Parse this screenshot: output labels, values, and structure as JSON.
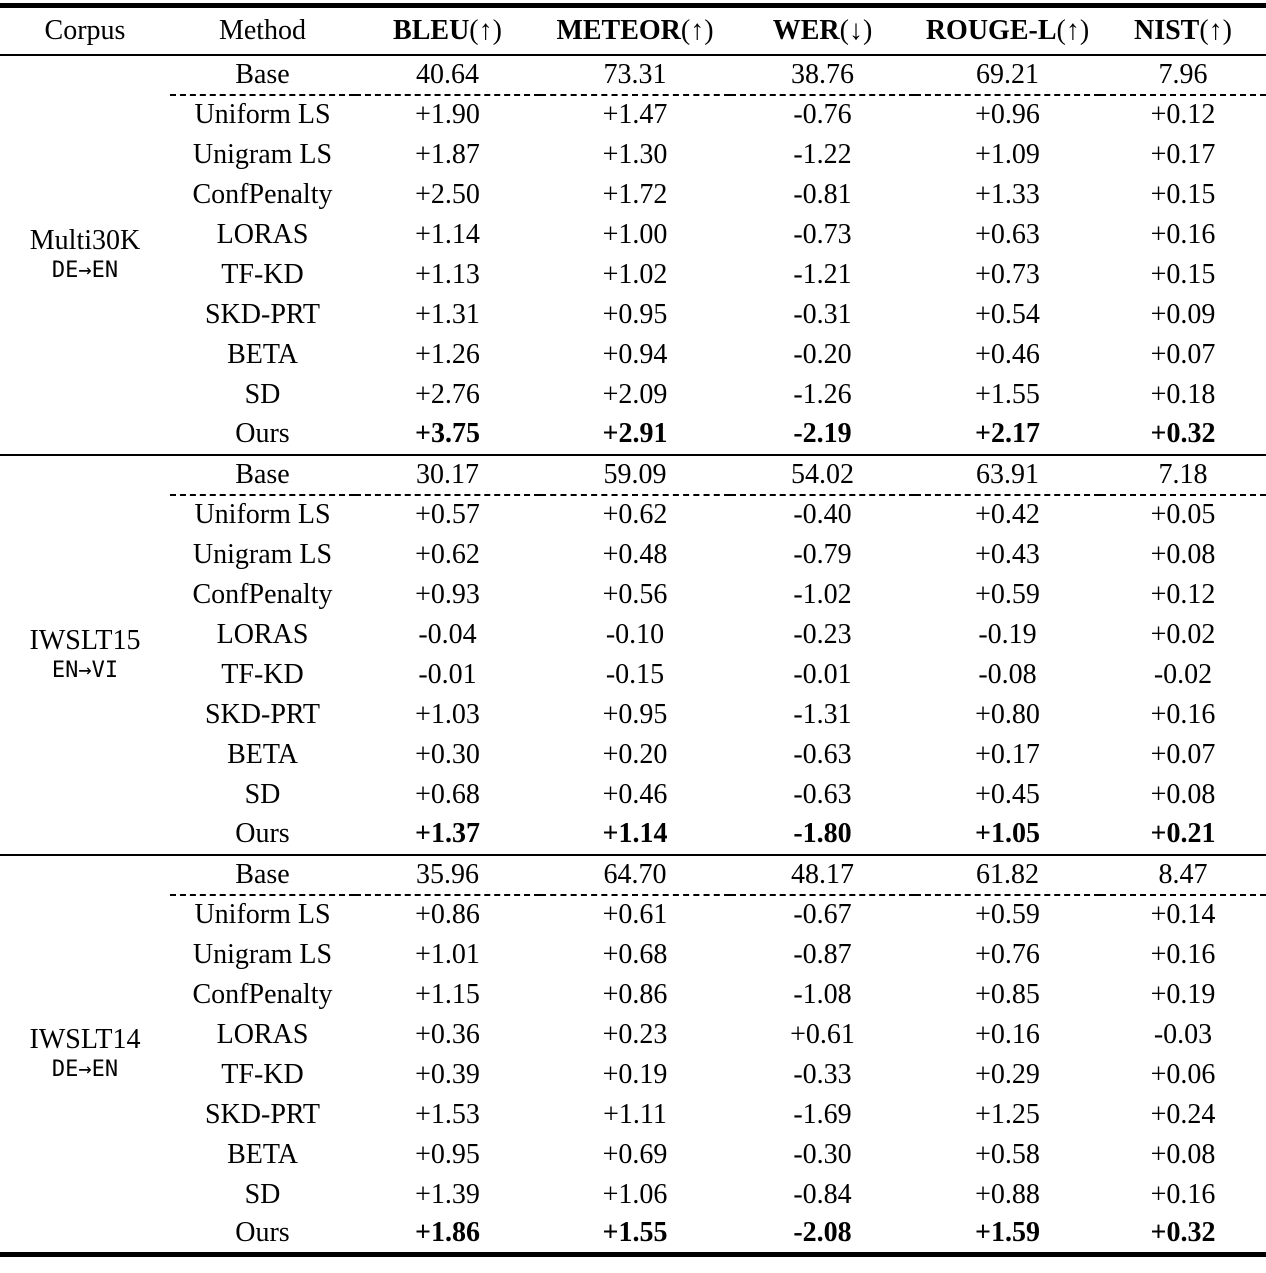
{
  "header": {
    "corpus": "Corpus",
    "method": "Method",
    "metrics": [
      {
        "name": "BLEU",
        "arrow": "(↑)"
      },
      {
        "name": "METEOR",
        "arrow": "(↑)"
      },
      {
        "name": "WER",
        "arrow": "(↓)"
      },
      {
        "name": "ROUGE-L",
        "arrow": "(↑)"
      },
      {
        "name": "NIST",
        "arrow": "(↑)"
      }
    ]
  },
  "sections": [
    {
      "corpus": "Multi30K",
      "direction": "DE→EN",
      "rows": [
        {
          "method": "Base",
          "values": [
            "40.64",
            "73.31",
            "38.76",
            "69.21",
            "7.96"
          ],
          "bold": false,
          "dashed_below": true
        },
        {
          "method": "Uniform LS",
          "values": [
            "+1.90",
            "+1.47",
            "-0.76",
            "+0.96",
            "+0.12"
          ],
          "bold": false,
          "dashed_below": false
        },
        {
          "method": "Unigram LS",
          "values": [
            "+1.87",
            "+1.30",
            "-1.22",
            "+1.09",
            "+0.17"
          ],
          "bold": false,
          "dashed_below": false
        },
        {
          "method": "ConfPenalty",
          "values": [
            "+2.50",
            "+1.72",
            "-0.81",
            "+1.33",
            "+0.15"
          ],
          "bold": false,
          "dashed_below": false
        },
        {
          "method": "LORAS",
          "values": [
            "+1.14",
            "+1.00",
            "-0.73",
            "+0.63",
            "+0.16"
          ],
          "bold": false,
          "dashed_below": false
        },
        {
          "method": "TF-KD",
          "values": [
            "+1.13",
            "+1.02",
            "-1.21",
            "+0.73",
            "+0.15"
          ],
          "bold": false,
          "dashed_below": false
        },
        {
          "method": "SKD-PRT",
          "values": [
            "+1.31",
            "+0.95",
            "-0.31",
            "+0.54",
            "+0.09"
          ],
          "bold": false,
          "dashed_below": false
        },
        {
          "method": "BETA",
          "values": [
            "+1.26",
            "+0.94",
            "-0.20",
            "+0.46",
            "+0.07"
          ],
          "bold": false,
          "dashed_below": false
        },
        {
          "method": "SD",
          "values": [
            "+2.76",
            "+2.09",
            "-1.26",
            "+1.55",
            "+0.18"
          ],
          "bold": false,
          "dashed_below": false
        },
        {
          "method": "Ours",
          "values": [
            "+3.75",
            "+2.91",
            "-2.19",
            "+2.17",
            "+0.32"
          ],
          "bold": true,
          "dashed_below": false
        }
      ]
    },
    {
      "corpus": "IWSLT15",
      "direction": "EN→VI",
      "rows": [
        {
          "method": "Base",
          "values": [
            "30.17",
            "59.09",
            "54.02",
            "63.91",
            "7.18"
          ],
          "bold": false,
          "dashed_below": true
        },
        {
          "method": "Uniform LS",
          "values": [
            "+0.57",
            "+0.62",
            "-0.40",
            "+0.42",
            "+0.05"
          ],
          "bold": false,
          "dashed_below": false
        },
        {
          "method": "Unigram LS",
          "values": [
            "+0.62",
            "+0.48",
            "-0.79",
            "+0.43",
            "+0.08"
          ],
          "bold": false,
          "dashed_below": false
        },
        {
          "method": "ConfPenalty",
          "values": [
            "+0.93",
            "+0.56",
            "-1.02",
            "+0.59",
            "+0.12"
          ],
          "bold": false,
          "dashed_below": false
        },
        {
          "method": "LORAS",
          "values": [
            "-0.04",
            "-0.10",
            "-0.23",
            "-0.19",
            "+0.02"
          ],
          "bold": false,
          "dashed_below": false
        },
        {
          "method": "TF-KD",
          "values": [
            "-0.01",
            "-0.15",
            "-0.01",
            "-0.08",
            "-0.02"
          ],
          "bold": false,
          "dashed_below": false
        },
        {
          "method": "SKD-PRT",
          "values": [
            "+1.03",
            "+0.95",
            "-1.31",
            "+0.80",
            "+0.16"
          ],
          "bold": false,
          "dashed_below": false
        },
        {
          "method": "BETA",
          "values": [
            "+0.30",
            "+0.20",
            "-0.63",
            "+0.17",
            "+0.07"
          ],
          "bold": false,
          "dashed_below": false
        },
        {
          "method": "SD",
          "values": [
            "+0.68",
            "+0.46",
            "-0.63",
            "+0.45",
            "+0.08"
          ],
          "bold": false,
          "dashed_below": false
        },
        {
          "method": "Ours",
          "values": [
            "+1.37",
            "+1.14",
            "-1.80",
            "+1.05",
            "+0.21"
          ],
          "bold": true,
          "dashed_below": false
        }
      ]
    },
    {
      "corpus": "IWSLT14",
      "direction": "DE→EN",
      "rows": [
        {
          "method": "Base",
          "values": [
            "35.96",
            "64.70",
            "48.17",
            "61.82",
            "8.47"
          ],
          "bold": false,
          "dashed_below": true
        },
        {
          "method": "Uniform LS",
          "values": [
            "+0.86",
            "+0.61",
            "-0.67",
            "+0.59",
            "+0.14"
          ],
          "bold": false,
          "dashed_below": false
        },
        {
          "method": "Unigram LS",
          "values": [
            "+1.01",
            "+0.68",
            "-0.87",
            "+0.76",
            "+0.16"
          ],
          "bold": false,
          "dashed_below": false
        },
        {
          "method": "ConfPenalty",
          "values": [
            "+1.15",
            "+0.86",
            "-1.08",
            "+0.85",
            "+0.19"
          ],
          "bold": false,
          "dashed_below": false
        },
        {
          "method": "LORAS",
          "values": [
            "+0.36",
            "+0.23",
            "+0.61",
            "+0.16",
            "-0.03"
          ],
          "bold": false,
          "dashed_below": false
        },
        {
          "method": "TF-KD",
          "values": [
            "+0.39",
            "+0.19",
            "-0.33",
            "+0.29",
            "+0.06"
          ],
          "bold": false,
          "dashed_below": false
        },
        {
          "method": "SKD-PRT",
          "values": [
            "+1.53",
            "+1.11",
            "-1.69",
            "+1.25",
            "+0.24"
          ],
          "bold": false,
          "dashed_below": false
        },
        {
          "method": "BETA",
          "values": [
            "+0.95",
            "+0.69",
            "-0.30",
            "+0.58",
            "+0.08"
          ],
          "bold": false,
          "dashed_below": false
        },
        {
          "method": "SD",
          "values": [
            "+1.39",
            "+1.06",
            "-0.84",
            "+0.88",
            "+0.16"
          ],
          "bold": false,
          "dashed_below": false
        },
        {
          "method": "Ours",
          "values": [
            "+1.86",
            "+1.55",
            "-2.08",
            "+1.59",
            "+0.32"
          ],
          "bold": true,
          "dashed_below": false
        }
      ]
    }
  ]
}
